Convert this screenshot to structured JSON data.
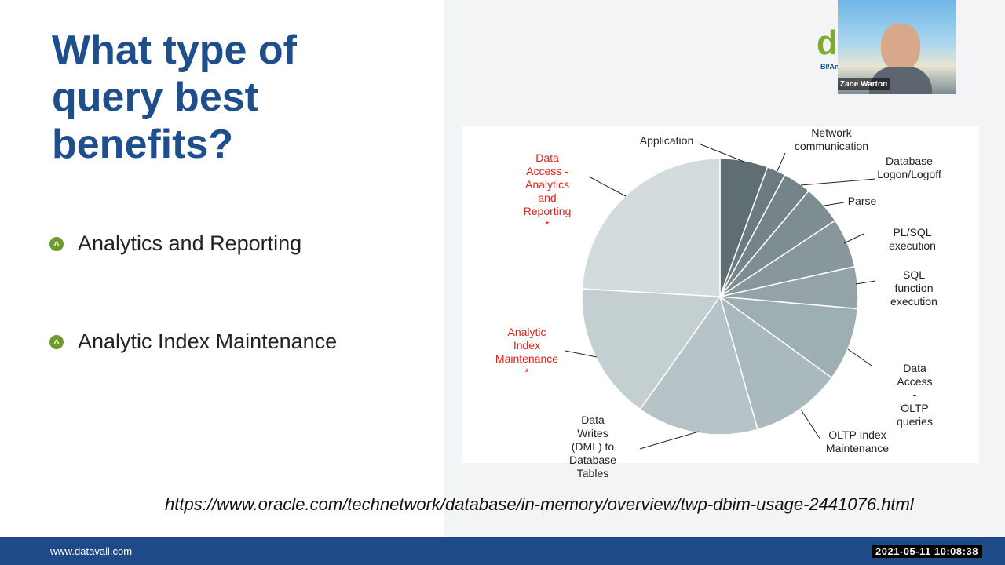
{
  "slide": {
    "title": "What type of query best benefits?",
    "bullets": [
      "Analytics and Reporting",
      "Analytic Index Maintenance"
    ],
    "source_url": "https://www.oracle.com/technetwork/database/in-memory/overview/twp-dbim-usage-2441076.html",
    "footer": "www.datavail.com",
    "timestamp": "2021-05-11 10:08:38",
    "logo": "d",
    "logo_sub": "BI/An",
    "presenter": "Zane Warton"
  },
  "chart_data": {
    "type": "pie",
    "categories": [
      "Application",
      "Network\ncommunication",
      "Database\nLogon/Logoff",
      "Parse",
      "PL/SQL execution",
      "SQL function\nexecution",
      "Data Access  -\nOLTP queries",
      "OLTP Index\nMaintenance",
      "Data Writes\n(DML) to\nDatabase Tables",
      "Analytic Index\nMaintenance *",
      "Data Access -\nAnalytics and\nReporting *"
    ],
    "values": [
      5.6,
      2.2,
      3.3,
      4.6,
      5.8,
      4.9,
      8.6,
      10.6,
      14.2,
      16.1,
      24.1
    ],
    "colors": [
      "#5f6e72",
      "#6c7b7f",
      "#748488",
      "#7d8d91",
      "#87979b",
      "#93a3a7",
      "#9eafb3",
      "#a9b9bd",
      "#b6c4c7",
      "#c4cfd2",
      "#d3dbdd"
    ],
    "label_colors": [
      "#222222",
      "#222222",
      "#222222",
      "#222222",
      "#222222",
      "#222222",
      "#222222",
      "#222222",
      "#222222",
      "#e0201c",
      "#e0201c"
    ]
  }
}
